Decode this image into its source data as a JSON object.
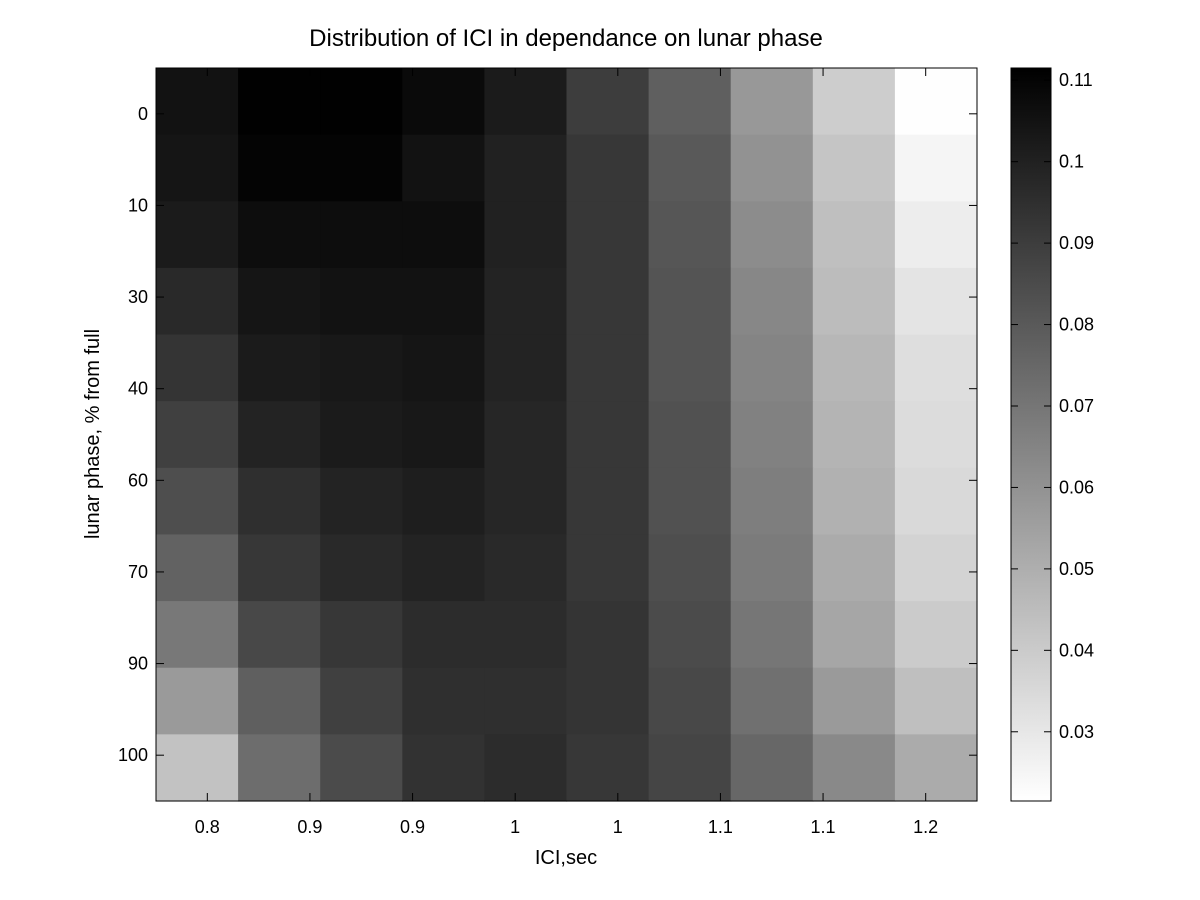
{
  "chart_data": {
    "type": "heatmap",
    "title": "Distribution of ICI in dependance on lunar phase",
    "xlabel": "ICI,sec",
    "ylabel": "lunar phase, % from full",
    "x_tick_labels": [
      "0.8",
      "0.9",
      "0.9",
      "1",
      "1",
      "1.1",
      "1.1",
      "1.2"
    ],
    "y_tick_labels": [
      "0",
      "10",
      "30",
      "40",
      "60",
      "70",
      "90",
      "100"
    ],
    "x_categories_count": 10,
    "y_categories_count": 11,
    "colormap": "gray-reversed",
    "colorbar": {
      "range": [
        0.0215,
        0.1115
      ],
      "tick_labels": [
        "0.03",
        "0.04",
        "0.05",
        "0.06",
        "0.07",
        "0.08",
        "0.09",
        "0.1",
        "0.11"
      ],
      "tick_values": [
        0.03,
        0.04,
        0.05,
        0.06,
        0.07,
        0.08,
        0.09,
        0.1,
        0.11
      ]
    },
    "values": [
      [
        0.105,
        0.111,
        0.111,
        0.108,
        0.102,
        0.09,
        0.078,
        0.058,
        0.039,
        0.022
      ],
      [
        0.104,
        0.11,
        0.11,
        0.105,
        0.1,
        0.092,
        0.08,
        0.06,
        0.042,
        0.025
      ],
      [
        0.102,
        0.107,
        0.107,
        0.107,
        0.1,
        0.092,
        0.081,
        0.062,
        0.044,
        0.028
      ],
      [
        0.097,
        0.104,
        0.105,
        0.105,
        0.099,
        0.092,
        0.082,
        0.064,
        0.045,
        0.031
      ],
      [
        0.093,
        0.102,
        0.103,
        0.104,
        0.099,
        0.092,
        0.082,
        0.065,
        0.047,
        0.033
      ],
      [
        0.089,
        0.099,
        0.102,
        0.103,
        0.098,
        0.092,
        0.083,
        0.066,
        0.048,
        0.034
      ],
      [
        0.084,
        0.095,
        0.099,
        0.101,
        0.098,
        0.092,
        0.083,
        0.067,
        0.049,
        0.035
      ],
      [
        0.077,
        0.092,
        0.097,
        0.099,
        0.097,
        0.092,
        0.084,
        0.068,
        0.051,
        0.037
      ],
      [
        0.069,
        0.086,
        0.092,
        0.096,
        0.096,
        0.093,
        0.085,
        0.07,
        0.053,
        0.04
      ],
      [
        0.057,
        0.078,
        0.089,
        0.095,
        0.095,
        0.093,
        0.086,
        0.072,
        0.057,
        0.044
      ],
      [
        0.043,
        0.073,
        0.085,
        0.094,
        0.096,
        0.092,
        0.087,
        0.075,
        0.063,
        0.051
      ]
    ],
    "grid": false,
    "legend": "colorbar-right"
  }
}
